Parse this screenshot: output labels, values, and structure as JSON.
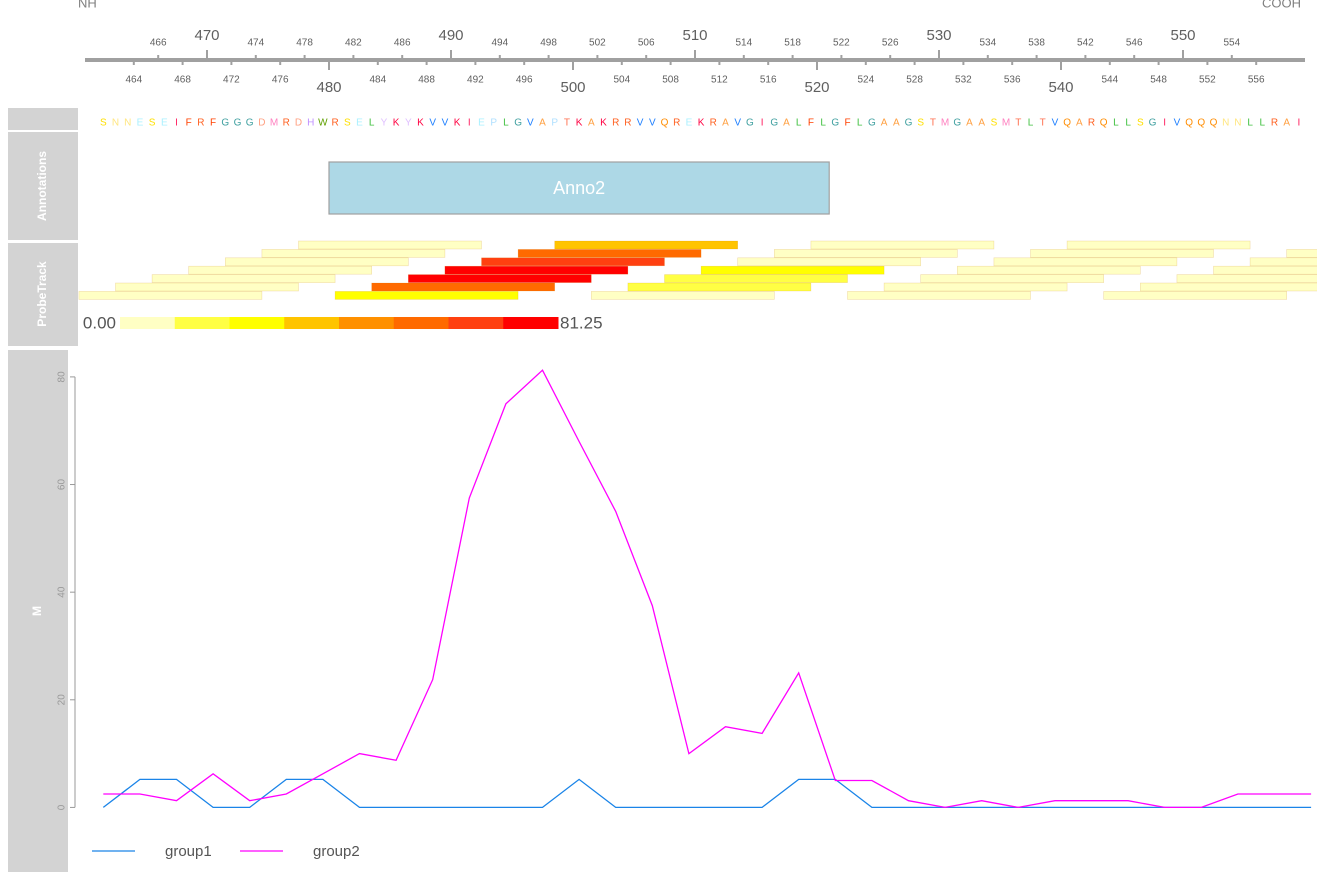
{
  "axis": {
    "left_label": "NH",
    "right_label": "COOH",
    "xlim": [
      460,
      560
    ],
    "ticks": [
      464,
      466,
      468,
      470,
      472,
      474,
      476,
      478,
      480,
      482,
      484,
      486,
      488,
      490,
      492,
      494,
      496,
      498,
      500,
      502,
      504,
      506,
      508,
      510,
      512,
      514,
      516,
      518,
      520,
      522,
      524,
      526,
      528,
      530,
      532,
      534,
      536,
      538,
      540,
      542,
      544,
      546,
      548,
      550,
      552,
      554,
      556
    ]
  },
  "sequence": {
    "first_position": 461,
    "letters": [
      "S",
      "N",
      "N",
      "E",
      "S",
      "E",
      "I",
      "F",
      "R",
      "F",
      "G",
      "G",
      "G",
      "D",
      "M",
      "R",
      "D",
      "H",
      "W",
      "R",
      "S",
      "E",
      "L",
      "Y",
      "K",
      "Y",
      "K",
      "V",
      "V",
      "K",
      "I",
      "E",
      "P",
      "L",
      "G",
      "V",
      "A",
      "P",
      "T",
      "K",
      "A",
      "K",
      "R",
      "R",
      "V",
      "V",
      "Q",
      "R",
      "E",
      "K",
      "R",
      "A",
      "V",
      "G",
      "I",
      "G",
      "A",
      "L",
      "F",
      "L",
      "G",
      "F",
      "L",
      "G",
      "A",
      "A",
      "G",
      "S",
      "T",
      "M",
      "G",
      "A",
      "A",
      "S",
      "M",
      "T",
      "L",
      "T",
      "V",
      "Q",
      "A",
      "R",
      "Q",
      "L",
      "L",
      "S",
      "G",
      "I",
      "V",
      "Q",
      "Q",
      "Q",
      "N",
      "N",
      "L",
      "L",
      "R",
      "A",
      "I"
    ]
  },
  "tracks": [
    "Annotations",
    "ProbeTrack"
  ],
  "annotations": [
    {
      "label": "Anno2",
      "start": 480,
      "end": 521,
      "color": "#add8e6"
    }
  ],
  "probe_track": {
    "length": 15,
    "start": [
      459.5,
      462.5,
      465.5,
      468.5,
      471.5,
      474.5,
      477.5,
      480.5,
      483.5,
      486.5,
      489.5,
      492.5,
      495.5,
      498.5,
      501.5,
      504.5,
      507.5,
      510.5,
      513.5,
      516.5,
      519.5,
      522.5,
      525.5,
      528.5,
      531.5,
      534.5,
      537.5,
      540.5,
      543.5,
      546.5,
      549.5,
      552.5,
      555.5,
      558.5
    ],
    "values": [
      1.25,
      6.25,
      1.25,
      2.5,
      6.25,
      10,
      8.75,
      23.75,
      57.5,
      75,
      81.25,
      68,
      55,
      37.5,
      10,
      15,
      13.75,
      25,
      5,
      5,
      1.25,
      0,
      1.25,
      0,
      1.25,
      1.25,
      1.25,
      0,
      0,
      2.5,
      2.5,
      2.5,
      2.5,
      2.5
    ],
    "colors": [
      "#ffffc4",
      "#ffff44",
      "#ffff00",
      "#ffc400",
      "#ff9000",
      "#ff6a00",
      "#ff4010",
      "#ff0000"
    ],
    "range": [
      {
        "value": 0,
        "label": "0.00"
      },
      81.25
    ]
  },
  "chart_data": {
    "type": "line",
    "ylabel": "M",
    "x": [
      461.5,
      464.5,
      467.5,
      470.5,
      473.5,
      476.5,
      479.5,
      482.5,
      485.5,
      488.5,
      491.5,
      494.5,
      497.5,
      500.5,
      503.5,
      506.5,
      509.5,
      512.5,
      515.5,
      518.5,
      521.5,
      524.5,
      527.5,
      530.5,
      533.5,
      536.5,
      539.5,
      542.5,
      545.5,
      548.5,
      551.5,
      554.5,
      557.5,
      560.5
    ],
    "series": [
      {
        "name": "group1",
        "color": "#1a84e8",
        "values": [
          0,
          5.2,
          5.2,
          0,
          0,
          5.2,
          5.2,
          0,
          0,
          0,
          0,
          0,
          0,
          5.2,
          0,
          0,
          0,
          0,
          0,
          5.2,
          5.2,
          0,
          0,
          0,
          0,
          0,
          0,
          0,
          0,
          0,
          0,
          0,
          0,
          0
        ]
      },
      {
        "name": "group2",
        "color": "#ff00ff",
        "values": [
          2.5,
          2.5,
          1.25,
          6.25,
          1.25,
          2.5,
          6.25,
          10,
          8.75,
          23.75,
          57.5,
          75,
          81.25,
          68,
          55,
          37.5,
          10,
          15,
          13.75,
          25,
          5,
          5,
          1.25,
          0,
          1.25,
          0,
          1.25,
          1.25,
          1.25,
          0,
          0,
          2.5,
          2.5,
          2.5
        ]
      }
    ],
    "ylim": [
      -12,
      85
    ],
    "yticks": [
      0,
      20,
      40,
      60,
      80
    ]
  }
}
